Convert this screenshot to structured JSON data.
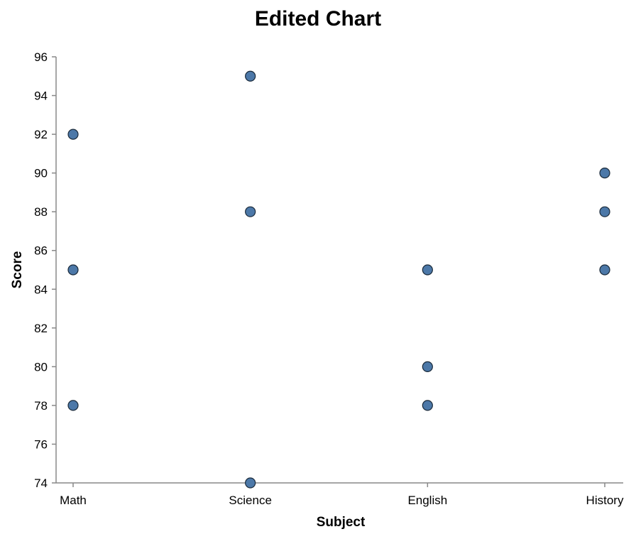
{
  "chart_data": {
    "type": "scatter",
    "title": "Edited Chart",
    "xlabel": "Subject",
    "ylabel": "Score",
    "categories": [
      "Math",
      "Science",
      "English",
      "History"
    ],
    "ylim": [
      74,
      96
    ],
    "yticks": [
      74,
      76,
      78,
      80,
      82,
      84,
      86,
      88,
      90,
      92,
      94,
      96
    ],
    "grid": false,
    "legend": "none",
    "points": [
      {
        "x": "Math",
        "y": 92
      },
      {
        "x": "Math",
        "y": 85
      },
      {
        "x": "Math",
        "y": 78
      },
      {
        "x": "Science",
        "y": 95
      },
      {
        "x": "Science",
        "y": 88
      },
      {
        "x": "Science",
        "y": 74
      },
      {
        "x": "English",
        "y": 85
      },
      {
        "x": "English",
        "y": 80
      },
      {
        "x": "English",
        "y": 78
      },
      {
        "x": "History",
        "y": 90
      },
      {
        "x": "History",
        "y": 88
      },
      {
        "x": "History",
        "y": 85
      }
    ],
    "colors": {
      "point_fill": "#4c78a8",
      "point_stroke": "#1a2a3a",
      "axis": "#888888"
    }
  }
}
